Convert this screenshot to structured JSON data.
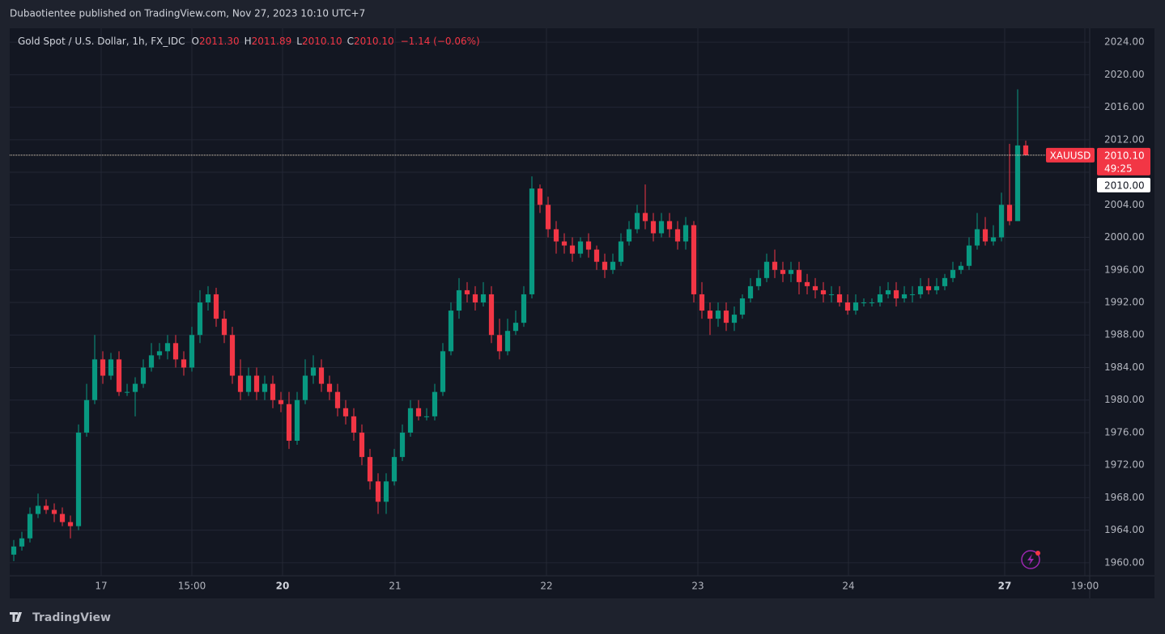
{
  "header": {
    "title": "Dubaotientee published on TradingView.com, Nov 27, 2023 10:10 UTC+7"
  },
  "footer": {
    "brand": "TradingView"
  },
  "chart_data": {
    "type": "candlestick",
    "title": "Gold Spot / U.S. Dollar, 1h, FX_IDC",
    "legend": {
      "o_label": "O",
      "open": "2011.30",
      "h_label": "H",
      "high": "2011.89",
      "l_label": "L",
      "low": "2010.10",
      "c_label": "C",
      "close": "2010.10",
      "change": "−1.14 (−0.06%)"
    },
    "symbol": "XAUUSD",
    "last_price": {
      "value": 2010.1,
      "label": "2010.10"
    },
    "countdown": "49:25",
    "bid_label": "2010.00",
    "up_color": "#089981",
    "down_color": "#f23645",
    "grid": true,
    "xlim": [
      -0.5,
      132.9
    ],
    "xticks": [
      {
        "value": 10.8,
        "label": "17"
      },
      {
        "value": 22,
        "label": "15:00"
      },
      {
        "value": 33.2,
        "label": "20"
      },
      {
        "value": 47.1,
        "label": "21"
      },
      {
        "value": 65.8,
        "label": "22"
      },
      {
        "value": 84.5,
        "label": "23"
      },
      {
        "value": 103.1,
        "label": "24"
      },
      {
        "value": 122.4,
        "label": "27"
      },
      {
        "value": 132.3,
        "label": "19:00"
      }
    ],
    "ylim": [
      1958.4,
      2025.7
    ],
    "yticks": [
      {
        "value": 1960,
        "label": "1960.00"
      },
      {
        "value": 1964,
        "label": "1964.00"
      },
      {
        "value": 1968,
        "label": "1968.00"
      },
      {
        "value": 1972,
        "label": "1972.00"
      },
      {
        "value": 1976,
        "label": "1976.00"
      },
      {
        "value": 1980,
        "label": "1980.00"
      },
      {
        "value": 1984,
        "label": "1984.00"
      },
      {
        "value": 1988,
        "label": "1988.00"
      },
      {
        "value": 1992,
        "label": "1992.00"
      },
      {
        "value": 1996,
        "label": "1996.00"
      },
      {
        "value": 2000,
        "label": "2000.00"
      },
      {
        "value": 2004,
        "label": "2004.00"
      },
      {
        "value": 2008,
        "label": "2008.00"
      },
      {
        "value": 2012,
        "label": "2012.00"
      },
      {
        "value": 2016,
        "label": "2016.00"
      },
      {
        "value": 2020,
        "label": "2020.00"
      },
      {
        "value": 2024,
        "label": "2024.00"
      }
    ],
    "open": [
      1961,
      1962,
      1963,
      1966,
      1967,
      1966.5,
      1966,
      1965,
      1964.5,
      1976,
      1980,
      1985,
      1983,
      1985,
      1981,
      1981,
      1982,
      1984,
      1985.5,
      1986,
      1987,
      1985,
      1984,
      1988,
      1992,
      1993,
      1990,
      1988,
      1983,
      1981,
      1983,
      1981,
      1982,
      1980,
      1979.5,
      1975,
      1980,
      1983,
      1984,
      1982,
      1981,
      1979,
      1978,
      1976,
      1973,
      1970,
      1967.5,
      1970,
      1973,
      1976,
      1979,
      1978,
      1978,
      1981,
      1986,
      1991,
      1993.5,
      1993,
      1992,
      1993,
      1988,
      1986,
      1988.5,
      1989.5,
      1993,
      2006,
      2004,
      2001,
      1999.5,
      1999,
      1998,
      1999.5,
      1998.5,
      1997,
      1996,
      1997,
      1999.5,
      2001,
      2003,
      2002,
      2000.5,
      2002,
      2001,
      1999.5,
      2001.5,
      1993,
      1991,
      1990,
      1991,
      1989.5,
      1990.5,
      1992.5,
      1994,
      1995,
      1997,
      1996,
      1995.5,
      1996,
      1994.5,
      1994,
      1993.5,
      1993,
      1993,
      1992,
      1991,
      1992,
      1992,
      1992,
      1993,
      1993.5,
      1992.5,
      1993,
      1993,
      1994,
      1993.5,
      1994,
      1995,
      1996,
      1996.5,
      1999,
      2001,
      1999.5,
      2000,
      2004,
      2002,
      2011.3
    ],
    "high": [
      1962.8,
      1963.8,
      1966.8,
      1968.5,
      1967.8,
      1967.3,
      1966.8,
      1965.8,
      1977,
      1982,
      1988,
      1986,
      1985.8,
      1986,
      1982,
      1982.8,
      1985,
      1987,
      1987,
      1988,
      1988,
      1986,
      1989,
      1993.5,
      1994,
      1993.8,
      1991,
      1989,
      1985,
      1984,
      1984,
      1983,
      1983,
      1981,
      1981,
      1981,
      1985,
      1985.5,
      1985,
      1983,
      1982,
      1980,
      1979,
      1977,
      1974,
      1971,
      1971,
      1974,
      1977,
      1980,
      1980,
      1979,
      1982,
      1987,
      1992,
      1995,
      1994.5,
      1994,
      1994.5,
      1994,
      1990,
      1990,
      1991,
      1994,
      2007.5,
      2006.5,
      2005,
      2002,
      2000.5,
      2000,
      2000,
      2000.5,
      1999,
      1998,
      1998,
      2000.5,
      2002,
      2004,
      2006.5,
      2003,
      2003,
      2003,
      2002,
      2002.5,
      2002,
      1994.5,
      1992,
      1992,
      1992,
      1991.5,
      1993,
      1995,
      1996,
      1998,
      1998.5,
      1997,
      1997,
      1997,
      1995.5,
      1995,
      1994.5,
      1994,
      1994,
      1993,
      1993,
      1992.5,
      1992.5,
      1994,
      1994.5,
      1994.5,
      1994,
      1994,
      1995,
      1995,
      1995,
      1995.5,
      1997,
      1997,
      2000,
      2003,
      2002.5,
      2001.5,
      2005.5,
      2011.5,
      2018.2,
      2011.89
    ],
    "low": [
      1960.2,
      1961.5,
      1962.5,
      1965.5,
      1966,
      1965,
      1964.5,
      1963,
      1964,
      1975.5,
      1979.5,
      1982,
      1982.5,
      1980.5,
      1980.5,
      1978,
      1981.5,
      1983.5,
      1985,
      1985,
      1984,
      1983,
      1983.5,
      1987,
      1991,
      1989,
      1987,
      1982,
      1980,
      1980.5,
      1980,
      1980,
      1979,
      1978.5,
      1974,
      1974.5,
      1979.5,
      1982,
      1981,
      1980,
      1978,
      1977,
      1975,
      1972,
      1969,
      1966,
      1966,
      1969.5,
      1972.5,
      1975.5,
      1977.5,
      1977.5,
      1977.5,
      1980.5,
      1985.5,
      1990,
      1992,
      1991,
      1991.5,
      1987,
      1985,
      1985.5,
      1988,
      1989,
      1992.5,
      2003,
      2000,
      1998,
      1998,
      1997,
      1997.5,
      1997.5,
      1996,
      1995,
      1995.5,
      1996.5,
      1999,
      2000.5,
      2001,
      1999.5,
      2000,
      2000,
      1998.5,
      1998.5,
      1992,
      1990,
      1988,
      1989,
      1988.5,
      1988.5,
      1990,
      1992,
      1993.5,
      1994.5,
      1995,
      1994.5,
      1994.5,
      1993,
      1993,
      1992.5,
      1992,
      1992,
      1991.5,
      1990.5,
      1990.5,
      1991.5,
      1991.5,
      1991.5,
      1992.5,
      1991.5,
      1992,
      1992,
      1992.5,
      1993,
      1993,
      1993.5,
      1994.5,
      1995.5,
      1996,
      1998.5,
      1999,
      1999,
      1999.5,
      2001.5,
      2002,
      2010.1
    ],
    "close": [
      1962,
      1963,
      1966,
      1967,
      1966.5,
      1966,
      1965,
      1964.5,
      1976,
      1980,
      1985,
      1983,
      1985,
      1981,
      1981,
      1982,
      1984,
      1985.5,
      1986,
      1987,
      1985,
      1984,
      1988,
      1992,
      1993,
      1990,
      1988,
      1983,
      1981,
      1983,
      1981,
      1982,
      1980,
      1979.5,
      1975,
      1980,
      1983,
      1984,
      1982,
      1981,
      1979,
      1978,
      1976,
      1973,
      1970,
      1967.5,
      1970,
      1973,
      1976,
      1979,
      1978,
      1978,
      1981,
      1986,
      1991,
      1993.5,
      1993,
      1992,
      1993,
      1988,
      1986,
      1988.5,
      1989.5,
      1993,
      2006,
      2004,
      2001,
      1999.5,
      1999,
      1998,
      1999.5,
      1998.5,
      1997,
      1996,
      1997,
      1999.5,
      2001,
      2003,
      2002,
      2000.5,
      2002,
      2001,
      1999.5,
      2001.5,
      1993,
      1991,
      1990,
      1991,
      1989.5,
      1990.5,
      1992.5,
      1994,
      1995,
      1997,
      1996,
      1995.5,
      1996,
      1994.5,
      1994,
      1993.5,
      1993,
      1993,
      1992,
      1991,
      1992,
      1992,
      1992,
      1993,
      1993.5,
      1992.5,
      1993,
      1993,
      1994,
      1993.5,
      1994,
      1995,
      1996,
      1996.5,
      1999,
      2001,
      1999.5,
      2000,
      2004,
      2002,
      2011.3,
      2010.1
    ]
  }
}
